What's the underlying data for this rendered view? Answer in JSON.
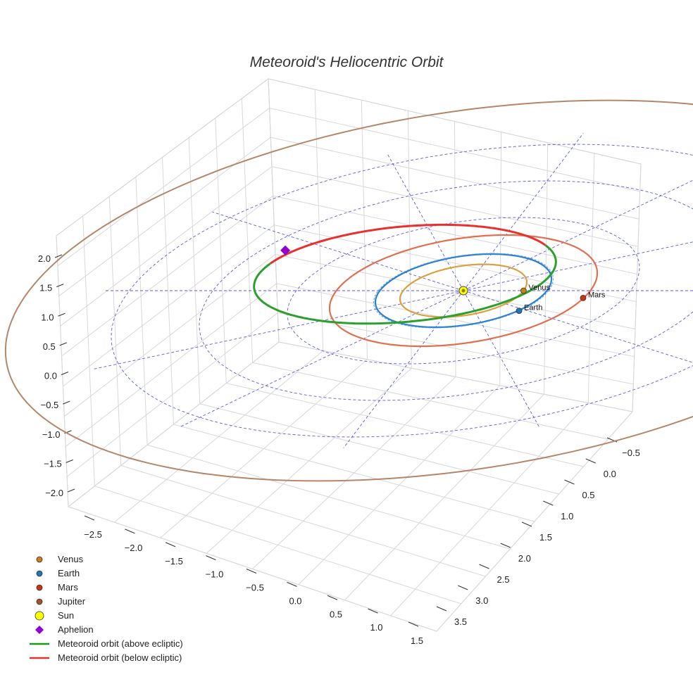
{
  "chart_data": {
    "type": "line",
    "title": "Meteoroid's Heliocentric Orbit",
    "xlabel": "",
    "ylabel": "",
    "zlabel": "",
    "xlim": [
      -2.5,
      1.5
    ],
    "ylim": [
      -0.5,
      3.5
    ],
    "zlim": [
      -2.0,
      2.0
    ],
    "x_ticks": [
      "−2.5",
      "−2.0",
      "−1.5",
      "−1.0",
      "−0.5",
      "0.0",
      "0.5",
      "1.0",
      "1.5"
    ],
    "y_ticks": [
      "−0.5",
      "0.0",
      "0.5",
      "1.0",
      "1.5",
      "2.0",
      "2.5",
      "3.0",
      "3.5"
    ],
    "z_ticks": [
      "2.0",
      "1.5",
      "1.0",
      "0.5",
      "0.0",
      "−0.5",
      "−1.0",
      "−1.5",
      "−2.0"
    ],
    "planet_orbit_radii_au": {
      "Venus": 0.72,
      "Earth": 1.0,
      "Mars": 1.52,
      "Jupiter": 5.2
    },
    "planets": [
      {
        "name": "Venus",
        "x": 0.72,
        "y": 0.0,
        "z": 0.0,
        "color": "#c8801a"
      },
      {
        "name": "Earth",
        "x": 0.85,
        "y": 0.55,
        "z": 0.0,
        "color": "#1f77b4"
      },
      {
        "name": "Mars",
        "x": 1.5,
        "y": 0.2,
        "z": 0.0,
        "color": "#cc3311"
      }
    ],
    "sun": {
      "name": "Sun",
      "x": 0.0,
      "y": 0.0,
      "z": 0.0,
      "color": "#ffff00"
    },
    "aphelion": {
      "name": "Aphelion",
      "x": -2.5,
      "y": -1.1,
      "z": -0.05,
      "color": "#9400d3"
    },
    "meteoroid_orbit": {
      "semi_major_axis_au": 1.75,
      "semi_minor_axis_au": 1.35,
      "center": [
        -0.85,
        -0.45
      ],
      "above_color": "#2ca02c",
      "below_color": "#e8302e"
    },
    "orbit_colors": {
      "Venus": "#dba040",
      "Earth": "#2a7fd0",
      "Mars": "#e07050",
      "Jupiter": "#b5876a"
    },
    "legend": [
      {
        "label": "Venus",
        "marker": "circle",
        "color": "#c8801a"
      },
      {
        "label": "Earth",
        "marker": "circle",
        "color": "#1f77b4"
      },
      {
        "label": "Mars",
        "marker": "circle",
        "color": "#cc3311"
      },
      {
        "label": "Jupiter",
        "marker": "circle",
        "color": "#a0522d"
      },
      {
        "label": "Sun",
        "marker": "circle-large",
        "color": "#ffff00"
      },
      {
        "label": "Aphelion",
        "marker": "diamond",
        "color": "#9400d3"
      },
      {
        "label": "Meteoroid orbit (above ecliptic)",
        "marker": "line",
        "color": "#1a9a1a"
      },
      {
        "label": "Meteoroid orbit (below ecliptic)",
        "marker": "line",
        "color": "#e8302e"
      }
    ],
    "legend_position": "bottom-left"
  }
}
